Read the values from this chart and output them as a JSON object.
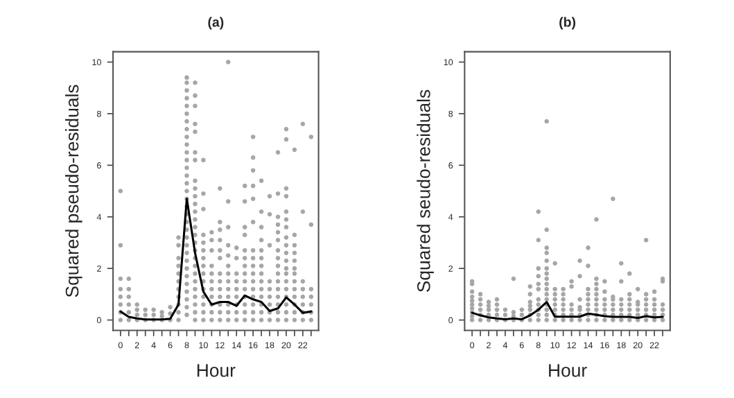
{
  "chart_data": [
    {
      "type": "scatter",
      "title": "(a)",
      "xlabel": "Hour",
      "ylabel": "Squared pseudo-residuals",
      "xlim": [
        -0.9,
        23.9
      ],
      "ylim": [
        -0.4,
        10.4
      ],
      "xticks": [
        0,
        {
          "value": 1,
          "label": null
        },
        2,
        {
          "value": 3,
          "label": null
        },
        4,
        {
          "value": 5,
          "label": null
        },
        6,
        {
          "value": 7,
          "label": null
        },
        8,
        {
          "value": 9,
          "label": null
        },
        10,
        {
          "value": 11,
          "label": null
        },
        12,
        {
          "value": 13,
          "label": null
        },
        14,
        {
          "value": 15,
          "label": null
        },
        16,
        {
          "value": 17,
          "label": null
        },
        18,
        {
          "value": 19,
          "label": null
        },
        20,
        {
          "value": 21,
          "label": null
        },
        22,
        {
          "value": 23,
          "label": null
        }
      ],
      "yticks": [
        0,
        2,
        4,
        6,
        8,
        10
      ],
      "grid": false,
      "marker": "circle",
      "series": [
        {
          "color": "#a6a6a6",
          "x": [
            0,
            0,
            0,
            0,
            0,
            0,
            0,
            0,
            1,
            1,
            1,
            1,
            1,
            1,
            2,
            2,
            2,
            2,
            3,
            3,
            3,
            4,
            4,
            4,
            5,
            5,
            5,
            6,
            6,
            6,
            7,
            7,
            7,
            7,
            7,
            7,
            7,
            7,
            7,
            7,
            7,
            8,
            8,
            8,
            8,
            8,
            8,
            8,
            8,
            8,
            8,
            8,
            8,
            8,
            8,
            8,
            8,
            8,
            8,
            8,
            8,
            8,
            8,
            8,
            8,
            8,
            8,
            8,
            8,
            8,
            8,
            8,
            8,
            9,
            9,
            9,
            9,
            9,
            9,
            9,
            9,
            9,
            9,
            9,
            9,
            9,
            9,
            9,
            9,
            9,
            9,
            9,
            9,
            9,
            9,
            9,
            9,
            9,
            9,
            10,
            10,
            10,
            10,
            10,
            10,
            10,
            10,
            10,
            10,
            10,
            10,
            10,
            10,
            10,
            11,
            11,
            11,
            11,
            11,
            11,
            11,
            11,
            11,
            11,
            11,
            12,
            12,
            12,
            12,
            12,
            12,
            12,
            12,
            12,
            12,
            12,
            12,
            12,
            13,
            13,
            13,
            13,
            13,
            13,
            13,
            13,
            13,
            13,
            13,
            13,
            13,
            14,
            14,
            14,
            14,
            14,
            14,
            14,
            14,
            14,
            15,
            15,
            15,
            15,
            15,
            15,
            15,
            15,
            15,
            15,
            15,
            15,
            15,
            15,
            16,
            16,
            16,
            16,
            16,
            16,
            16,
            16,
            16,
            16,
            16,
            16,
            16,
            16,
            16,
            16,
            17,
            17,
            17,
            17,
            17,
            17,
            17,
            17,
            17,
            17,
            17,
            17,
            17,
            17,
            18,
            18,
            18,
            18,
            18,
            18,
            18,
            18,
            18,
            19,
            19,
            19,
            19,
            19,
            19,
            19,
            19,
            19,
            19,
            19,
            19,
            19,
            19,
            19,
            19,
            20,
            20,
            20,
            20,
            20,
            20,
            20,
            20,
            20,
            20,
            20,
            20,
            20,
            20,
            20,
            20,
            20,
            20,
            20,
            21,
            21,
            21,
            21,
            21,
            21,
            21,
            21,
            21,
            21,
            21,
            21,
            21,
            22,
            22,
            22,
            22,
            22,
            22,
            22,
            22,
            23,
            23,
            23,
            23,
            23,
            23,
            23
          ],
          "values": [
            0,
            0.3,
            0.6,
            0.9,
            1.2,
            1.6,
            2.9,
            5.0,
            0,
            0.3,
            0.6,
            0.9,
            1.2,
            1.6,
            0,
            0.2,
            0.4,
            0.6,
            0,
            0.2,
            0.4,
            0,
            0.2,
            0.4,
            0,
            0.15,
            0.3,
            0,
            0.25,
            0.5,
            0,
            0.3,
            0.6,
            0.9,
            1.2,
            1.5,
            1.8,
            2.1,
            2.4,
            2.9,
            3.2,
            0.2,
            0.5,
            0.8,
            1.1,
            1.4,
            1.7,
            2.0,
            2.3,
            2.6,
            2.9,
            3.2,
            3.5,
            3.8,
            4.1,
            4.4,
            4.7,
            5.0,
            5.3,
            5.6,
            5.9,
            6.2,
            6.5,
            6.8,
            7.1,
            7.4,
            7.7,
            8.0,
            8.3,
            8.6,
            8.9,
            9.2,
            9.4,
            0,
            0.3,
            0.6,
            0.9,
            1.2,
            1.5,
            1.8,
            2.1,
            2.4,
            2.7,
            3.0,
            3.3,
            3.6,
            3.9,
            4.2,
            4.5,
            4.8,
            5.1,
            5.4,
            6.2,
            6.5,
            7.3,
            7.6,
            8.3,
            8.7,
            9.2,
            0,
            0.3,
            0.6,
            0.9,
            1.2,
            1.5,
            1.8,
            2.1,
            2.4,
            2.7,
            3.0,
            3.3,
            4.3,
            4.9,
            6.2,
            0,
            0.3,
            0.6,
            0.9,
            1.2,
            1.5,
            1.8,
            2.1,
            2.7,
            3.1,
            3.4,
            0,
            0.3,
            0.6,
            0.9,
            1.2,
            1.5,
            1.8,
            2.4,
            2.7,
            3.1,
            3.5,
            3.8,
            5.1,
            0,
            0.3,
            0.6,
            0.9,
            1.2,
            1.5,
            1.8,
            2.1,
            2.5,
            2.9,
            3.6,
            4.6,
            10.0,
            0,
            0.3,
            0.6,
            0.9,
            1.2,
            1.5,
            1.8,
            2.4,
            2.8,
            0,
            0.3,
            0.6,
            0.9,
            1.2,
            1.5,
            1.8,
            2.1,
            2.4,
            2.7,
            3.3,
            3.6,
            4.6,
            5.2,
            0,
            0.3,
            0.6,
            0.9,
            1.2,
            1.5,
            1.8,
            2.1,
            2.4,
            2.7,
            3.8,
            4.7,
            5.2,
            5.8,
            6.3,
            7.1,
            0,
            0.3,
            0.6,
            0.9,
            1.2,
            1.5,
            1.8,
            2.1,
            2.4,
            2.7,
            3.1,
            3.6,
            4.2,
            5.4,
            0,
            0.3,
            0.6,
            0.9,
            1.2,
            1.5,
            2.9,
            4.1,
            4.8,
            0,
            0.3,
            0.6,
            0.9,
            1.2,
            1.5,
            1.8,
            2.1,
            2.4,
            2.7,
            3.1,
            3.4,
            3.7,
            4.0,
            4.9,
            6.5,
            0,
            0.3,
            0.6,
            0.9,
            1.2,
            1.5,
            1.8,
            2.0,
            2.3,
            2.6,
            2.9,
            3.2,
            3.6,
            3.9,
            4.2,
            4.8,
            5.1,
            7.0,
            7.4,
            0,
            0.3,
            0.6,
            0.9,
            1.2,
            1.5,
            1.8,
            2.0,
            2.3,
            2.6,
            2.9,
            3.3,
            6.6,
            0,
            0.3,
            0.6,
            0.9,
            1.2,
            1.5,
            4.2,
            7.6,
            0,
            0.3,
            0.6,
            0.9,
            1.2,
            3.7,
            7.1
          ]
        },
        {
          "type": "line",
          "color": "#000000",
          "marker": "none",
          "x": [
            0,
            1,
            2,
            3,
            4,
            5,
            6,
            7,
            8,
            9,
            10,
            11,
            12,
            13,
            14,
            15,
            16,
            17,
            18,
            19,
            20,
            21,
            22,
            23
          ],
          "values": [
            0.33,
            0.12,
            0.06,
            0.02,
            0.02,
            0.02,
            0.05,
            0.6,
            4.7,
            2.6,
            1.1,
            0.6,
            0.7,
            0.7,
            0.55,
            0.95,
            0.8,
            0.7,
            0.35,
            0.45,
            0.88,
            0.6,
            0.28,
            0.33
          ]
        }
      ]
    },
    {
      "type": "scatter",
      "title": "(b)",
      "xlabel": "Hour",
      "ylabel": "Squared seudo-residuals",
      "xlim": [
        -0.9,
        23.9
      ],
      "ylim": [
        -0.4,
        10.4
      ],
      "xticks": [
        0,
        {
          "value": 1,
          "label": null
        },
        2,
        {
          "value": 3,
          "label": null
        },
        4,
        {
          "value": 5,
          "label": null
        },
        6,
        {
          "value": 7,
          "label": null
        },
        8,
        {
          "value": 9,
          "label": null
        },
        10,
        {
          "value": 11,
          "label": null
        },
        12,
        {
          "value": 13,
          "label": null
        },
        14,
        {
          "value": 15,
          "label": null
        },
        16,
        {
          "value": 17,
          "label": null
        },
        18,
        {
          "value": 19,
          "label": null
        },
        20,
        {
          "value": 21,
          "label": null
        },
        22,
        {
          "value": 23,
          "label": null
        }
      ],
      "yticks": [
        0,
        2,
        4,
        6,
        8,
        10
      ],
      "grid": false,
      "marker": "circle",
      "series": [
        {
          "color": "#a6a6a6",
          "x": [
            0,
            0,
            0,
            0,
            0,
            0,
            0,
            0,
            0,
            0,
            1,
            1,
            1,
            1,
            1,
            1,
            2,
            2,
            2,
            2,
            2,
            3,
            3,
            3,
            3,
            3,
            4,
            4,
            4,
            5,
            5,
            5,
            5,
            6,
            6,
            6,
            7,
            7,
            7,
            7,
            7,
            7,
            7,
            8,
            8,
            8,
            8,
            8,
            8,
            8,
            8,
            8,
            8,
            8,
            9,
            9,
            9,
            9,
            9,
            9,
            9,
            9,
            9,
            9,
            9,
            9,
            9,
            9,
            9,
            9,
            10,
            10,
            10,
            10,
            10,
            10,
            10,
            10,
            11,
            11,
            11,
            11,
            11,
            11,
            11,
            12,
            12,
            12,
            12,
            12,
            12,
            13,
            13,
            13,
            13,
            13,
            13,
            13,
            14,
            14,
            14,
            14,
            14,
            14,
            14,
            14,
            14,
            15,
            15,
            15,
            15,
            15,
            15,
            15,
            15,
            15,
            15,
            16,
            16,
            16,
            16,
            16,
            16,
            16,
            17,
            17,
            17,
            17,
            17,
            17,
            17,
            18,
            18,
            18,
            18,
            18,
            18,
            18,
            19,
            19,
            19,
            19,
            19,
            19,
            19,
            20,
            20,
            20,
            20,
            20,
            20,
            21,
            21,
            21,
            21,
            21,
            21,
            21,
            22,
            22,
            22,
            22,
            22,
            22,
            23,
            23,
            23,
            23,
            23,
            23
          ],
          "values": [
            0,
            0.15,
            0.3,
            0.45,
            0.6,
            0.75,
            0.9,
            1.1,
            1.4,
            1.5,
            0,
            0.2,
            0.4,
            0.6,
            0.8,
            1.0,
            0,
            0.2,
            0.4,
            0.55,
            0.7,
            0,
            0.2,
            0.4,
            0.6,
            0.8,
            0,
            0.2,
            0.4,
            0,
            0.15,
            0.3,
            1.6,
            0,
            0.2,
            0.4,
            0,
            0.2,
            0.4,
            0.55,
            0.7,
            1.0,
            1.3,
            0,
            0.2,
            0.4,
            0.6,
            0.8,
            1.2,
            1.4,
            1.7,
            2.0,
            3.1,
            4.2,
            0,
            0.2,
            0.4,
            0.6,
            0.8,
            1.0,
            1.2,
            1.4,
            1.6,
            1.8,
            2.0,
            2.3,
            2.6,
            2.8,
            3.5,
            7.7,
            0,
            0.2,
            0.4,
            0.6,
            0.8,
            1.0,
            1.2,
            2.2,
            0,
            0.2,
            0.4,
            0.6,
            0.8,
            1.0,
            1.2,
            0,
            0.2,
            0.4,
            0.6,
            1.3,
            1.5,
            0,
            0.2,
            0.4,
            0.5,
            0.8,
            1.7,
            2.3,
            0,
            0.2,
            0.4,
            0.6,
            0.8,
            1.0,
            1.2,
            2.1,
            2.8,
            0,
            0.2,
            0.4,
            0.6,
            0.8,
            1.0,
            1.2,
            1.4,
            1.6,
            3.9,
            0,
            0.2,
            0.4,
            0.6,
            0.8,
            1.1,
            1.5,
            0,
            0.2,
            0.4,
            0.6,
            0.8,
            0.9,
            4.7,
            0,
            0.2,
            0.4,
            0.6,
            0.8,
            1.5,
            2.2,
            0,
            0.2,
            0.4,
            0.6,
            0.8,
            1.0,
            1.8,
            0,
            0.2,
            0.4,
            0.6,
            0.7,
            1.2,
            0,
            0.2,
            0.4,
            0.6,
            0.8,
            1.0,
            3.1,
            0,
            0.2,
            0.4,
            0.6,
            0.8,
            1.1,
            0,
            0.2,
            0.4,
            0.6,
            1.5,
            1.6
          ]
        },
        {
          "type": "line",
          "color": "#000000",
          "marker": "none",
          "x": [
            0,
            1,
            2,
            3,
            4,
            5,
            6,
            7,
            8,
            9,
            10,
            11,
            12,
            13,
            14,
            15,
            16,
            17,
            18,
            19,
            20,
            21,
            22,
            23
          ],
          "values": [
            0.28,
            0.18,
            0.1,
            0.06,
            0.03,
            0.06,
            0.03,
            0.18,
            0.4,
            0.7,
            0.13,
            0.13,
            0.13,
            0.13,
            0.25,
            0.2,
            0.15,
            0.12,
            0.12,
            0.12,
            0.08,
            0.15,
            0.1,
            0.12
          ]
        }
      ]
    }
  ]
}
